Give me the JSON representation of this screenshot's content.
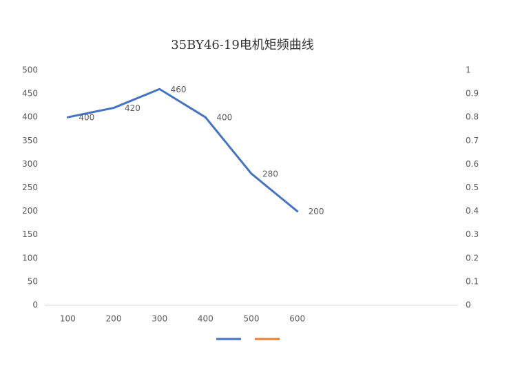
{
  "chart_data": {
    "type": "line",
    "title": "35BY46-19电机矩频曲线",
    "categories": [
      "100",
      "200",
      "300",
      "400",
      "500",
      "600",
      null,
      null,
      null
    ],
    "series": [
      {
        "color": "#4472c4",
        "values": [
          400,
          420,
          460,
          400,
          280,
          200,
          null,
          null,
          null
        ],
        "data_labels": true
      },
      {
        "color": "#ed7d31",
        "axis": "y2",
        "values": [
          null,
          null,
          null,
          null,
          null,
          null,
          null,
          null,
          null
        ]
      }
    ],
    "ylim": [
      0,
      500
    ],
    "yticks": [
      0,
      50,
      100,
      150,
      200,
      250,
      300,
      350,
      400,
      450,
      500
    ],
    "y2lim": [
      0,
      1
    ],
    "y2ticks": [
      0,
      0.1,
      0.2,
      0.3,
      0.4,
      0.5,
      0.6,
      0.7,
      0.8,
      0.9,
      1
    ],
    "legend": "bottom"
  }
}
